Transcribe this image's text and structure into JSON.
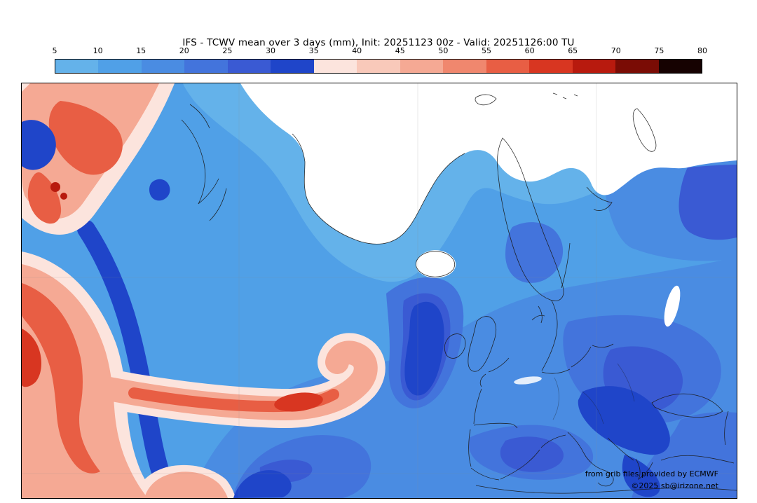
{
  "title": "IFS - TCWV mean over 3 days (mm), Init: 20251123 00z - Valid: 20251126:00 TU",
  "colorbar": {
    "ticks": [
      "5",
      "10",
      "15",
      "20",
      "25",
      "30",
      "35",
      "40",
      "45",
      "50",
      "55",
      "60",
      "65",
      "70",
      "75",
      "80"
    ],
    "colors": [
      "#64b2ea",
      "#50a0e7",
      "#4a8ce2",
      "#4374dc",
      "#3a5ad3",
      "#1f45c9",
      "#fce4dd",
      "#f9c9ba",
      "#f5a994",
      "#f0876e",
      "#e85e44",
      "#d83621",
      "#b81a0e",
      "#7a0c05",
      "#160201"
    ]
  },
  "attribution": {
    "line1": "from grib files provided by ECMWF",
    "line2": "©2025 sb@irizone.net"
  },
  "chart_data": {
    "type": "heatmap",
    "title": "IFS - TCWV mean over 3 days (mm)",
    "model": "IFS",
    "variable": "Total column water vapour, 3-day mean",
    "units": "mm",
    "init": "20251123 00z",
    "valid": "20251126:00 TU",
    "legend_position": "top",
    "colorbar_ticks": [
      5,
      10,
      15,
      20,
      25,
      30,
      35,
      40,
      45,
      50,
      55,
      60,
      65,
      70,
      75,
      80
    ],
    "colorbar_colors": [
      "#64b2ea",
      "#50a0e7",
      "#4a8ce2",
      "#4374dc",
      "#3a5ad3",
      "#1f45c9",
      "#fce4dd",
      "#f9c9ba",
      "#f5a994",
      "#f0876e",
      "#e85e44",
      "#d83621",
      "#b81a0e",
      "#7a0c05",
      "#160201"
    ],
    "region_depicted": "North Atlantic and Europe; white (<5 mm) over Arctic/Greenland, blues (5-30 mm) over ocean and Europe, reds (30-60 mm) moist plume over the western Atlantic"
  }
}
